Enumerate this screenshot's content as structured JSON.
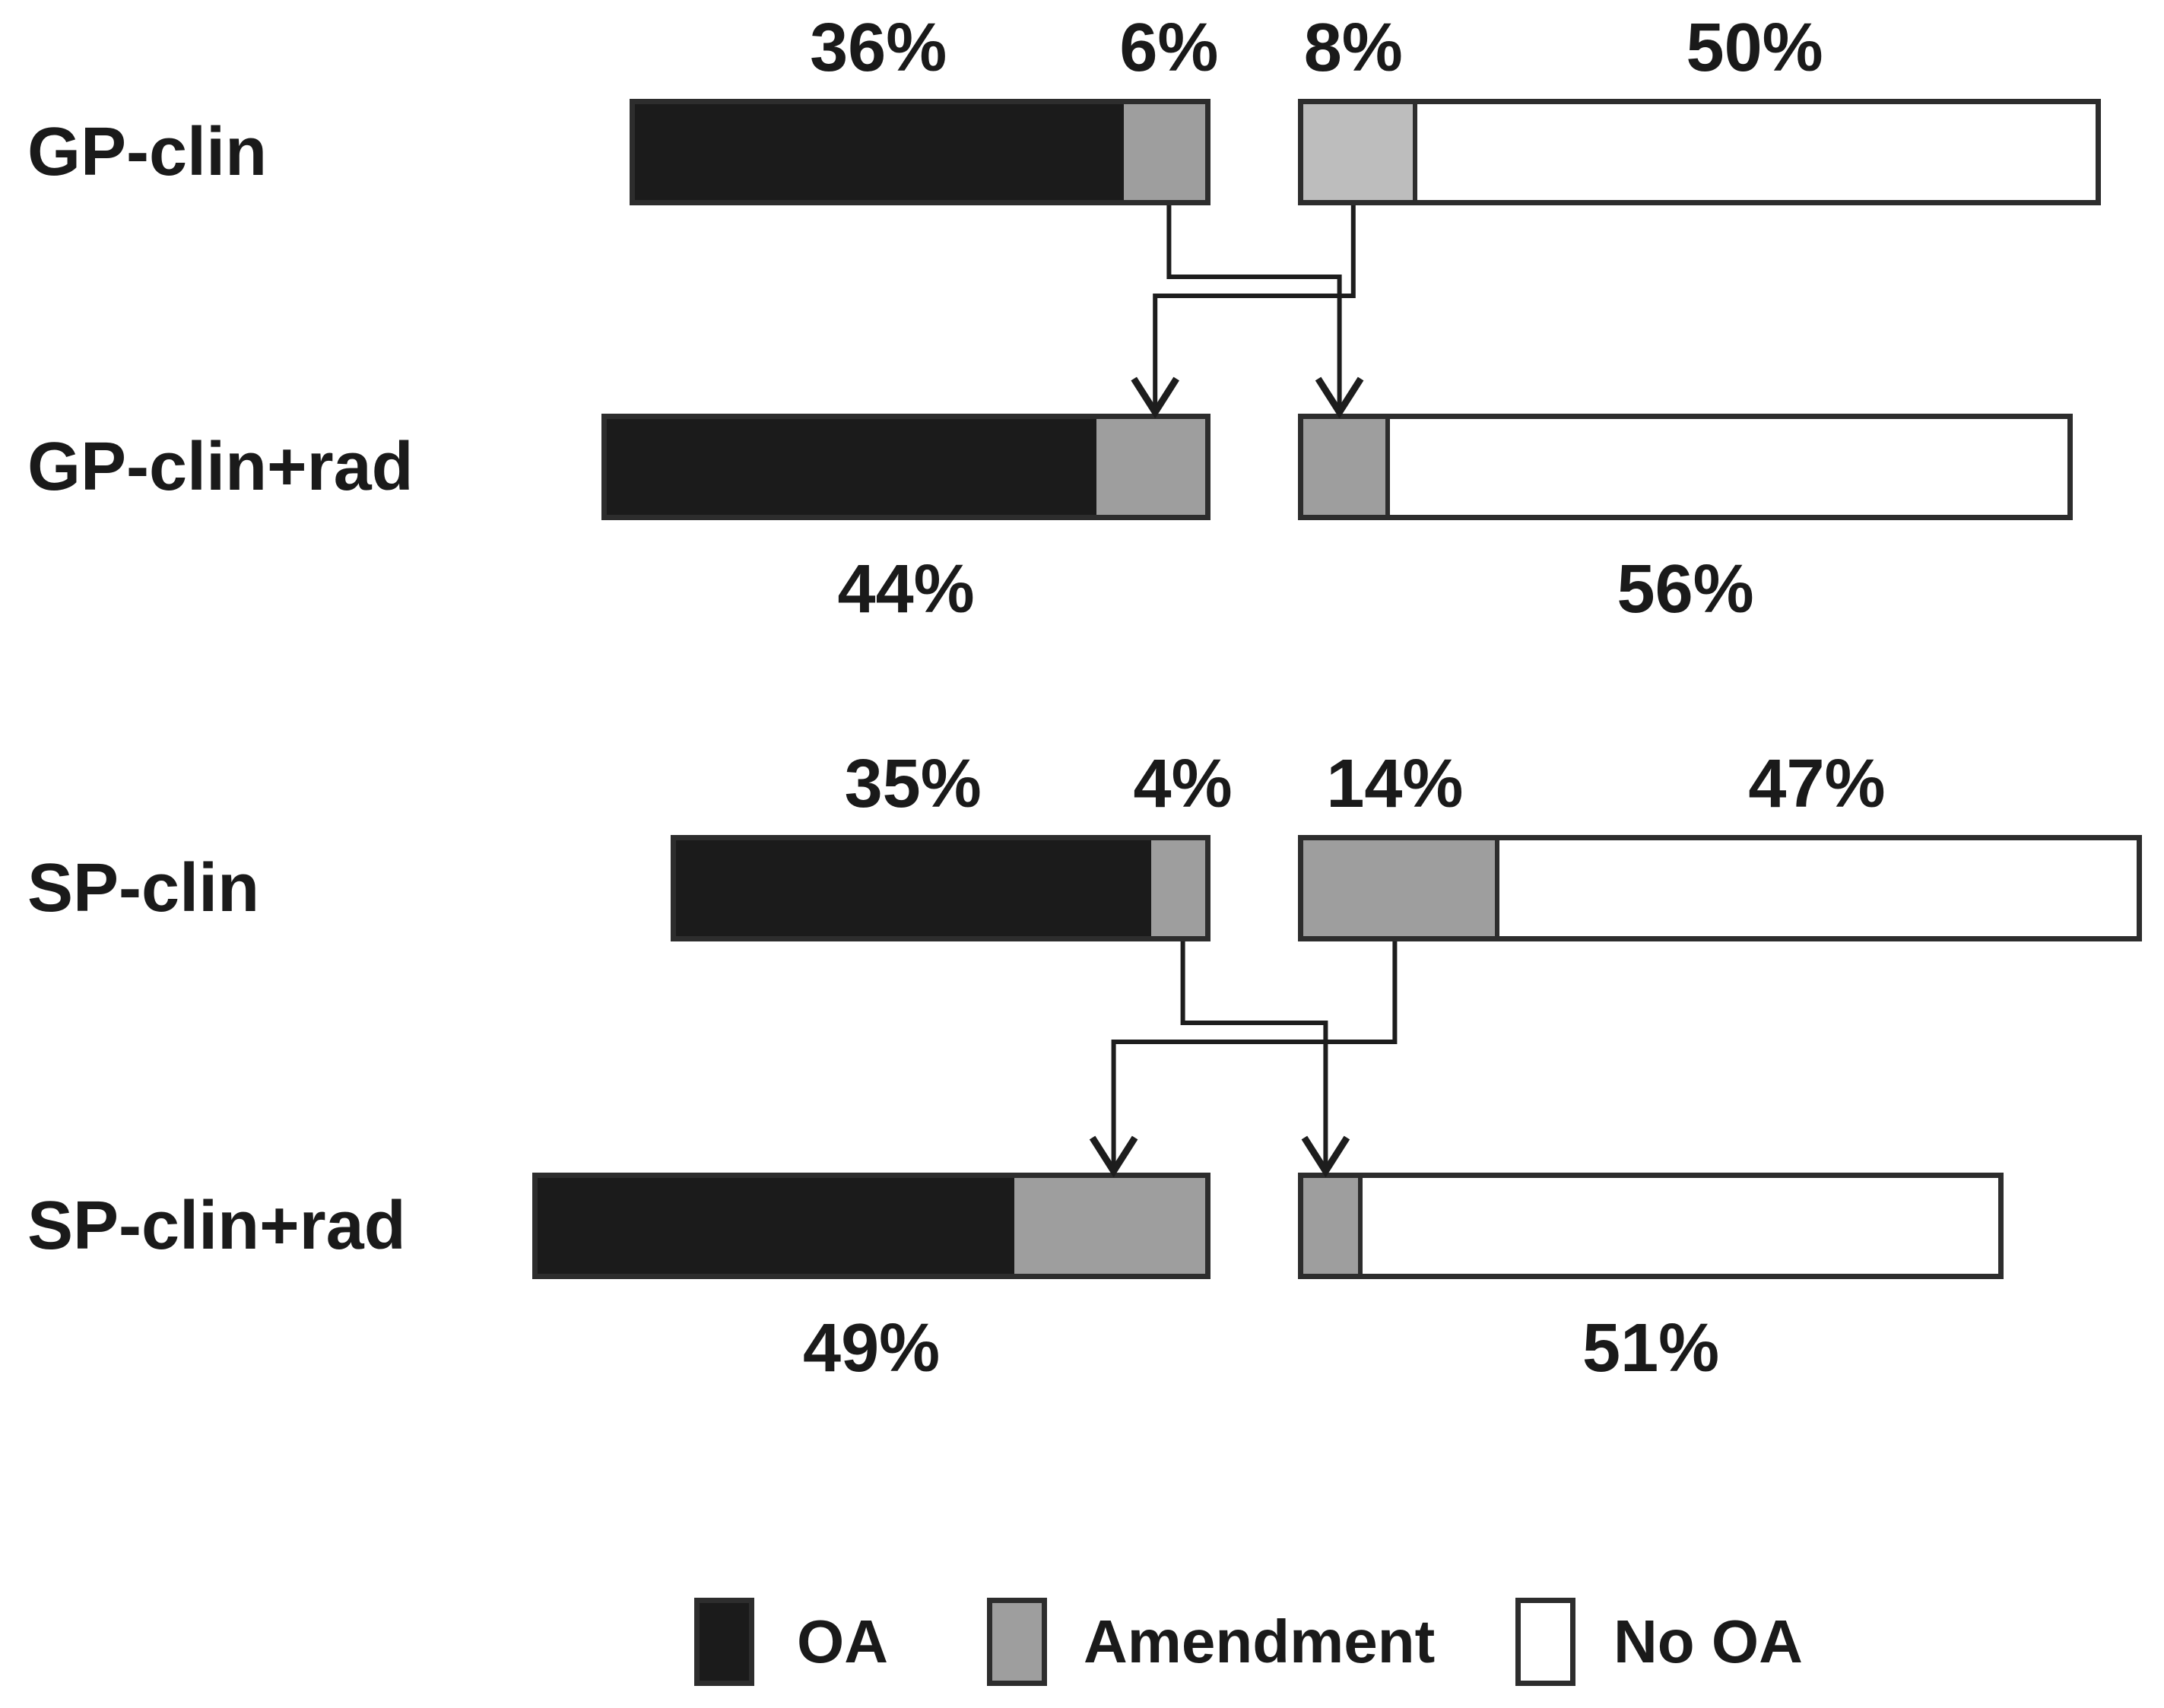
{
  "figure": {
    "background": "#ffffff",
    "colors": {
      "oa": "#1b1b1b",
      "amendment": "#9e9e9e",
      "amendment_light": "#bdbdbd",
      "no_oa": "#ffffff",
      "outline": "#2d2d2d",
      "flow_line": "#1d1d1d",
      "text": "#1a1a1a"
    }
  },
  "chart_data": {
    "type": "bar",
    "subtype": "paired-horizontal-stacked-bars-with-flow-arrows",
    "unit": "%",
    "orientation": "horizontal",
    "axis_range_per_row": [
      0,
      100
    ],
    "grid": false,
    "legend": {
      "position": "bottom",
      "items": [
        {
          "label": "OA",
          "color_key": "oa"
        },
        {
          "label": "Amendment",
          "color_key": "amendment"
        },
        {
          "label": "No OA",
          "color_key": "no_oa"
        }
      ]
    },
    "groups": [
      {
        "id": "GP",
        "rows": [
          {
            "label": "GP-clin",
            "left_bar": [
              {
                "category": "OA",
                "value": 36,
                "label": "36%"
              },
              {
                "category": "Amendment",
                "value": 6,
                "label": "6%"
              }
            ],
            "right_bar": [
              {
                "category": "Amendment",
                "value": 8,
                "label": "8%",
                "shade": "light"
              },
              {
                "category": "No OA",
                "value": 50,
                "label": "50%"
              }
            ]
          },
          {
            "label": "GP-clin+rad",
            "left_bar": [
              {
                "category": "OA",
                "value": 36
              },
              {
                "category": "Amendment",
                "value": 8
              }
            ],
            "right_bar": [
              {
                "category": "Amendment",
                "value": 6
              },
              {
                "category": "No OA",
                "value": 50
              }
            ],
            "left_total_label": "44%",
            "right_total_label": "56%"
          }
        ],
        "flows": [
          {
            "value": 6,
            "from": "GP-clin left Amendment",
            "to": "GP-clin+rad right Amendment"
          },
          {
            "value": 8,
            "from": "GP-clin right Amendment",
            "to": "GP-clin+rad left Amendment"
          }
        ]
      },
      {
        "id": "SP",
        "rows": [
          {
            "label": "SP-clin",
            "left_bar": [
              {
                "category": "OA",
                "value": 35,
                "label": "35%"
              },
              {
                "category": "Amendment",
                "value": 4,
                "label": "4%"
              }
            ],
            "right_bar": [
              {
                "category": "Amendment",
                "value": 14,
                "label": "14%"
              },
              {
                "category": "No OA",
                "value": 47,
                "label": "47%"
              }
            ]
          },
          {
            "label": "SP-clin+rad",
            "left_bar": [
              {
                "category": "OA",
                "value": 35
              },
              {
                "category": "Amendment",
                "value": 14
              }
            ],
            "right_bar": [
              {
                "category": "Amendment",
                "value": 4
              },
              {
                "category": "No OA",
                "value": 47
              }
            ],
            "left_total_label": "49%",
            "right_total_label": "51%"
          }
        ],
        "flows": [
          {
            "value": 4,
            "from": "SP-clin left Amendment",
            "to": "SP-clin+rad right Amendment"
          },
          {
            "value": 14,
            "from": "SP-clin right Amendment",
            "to": "SP-clin+rad left Amendment"
          }
        ]
      }
    ]
  }
}
